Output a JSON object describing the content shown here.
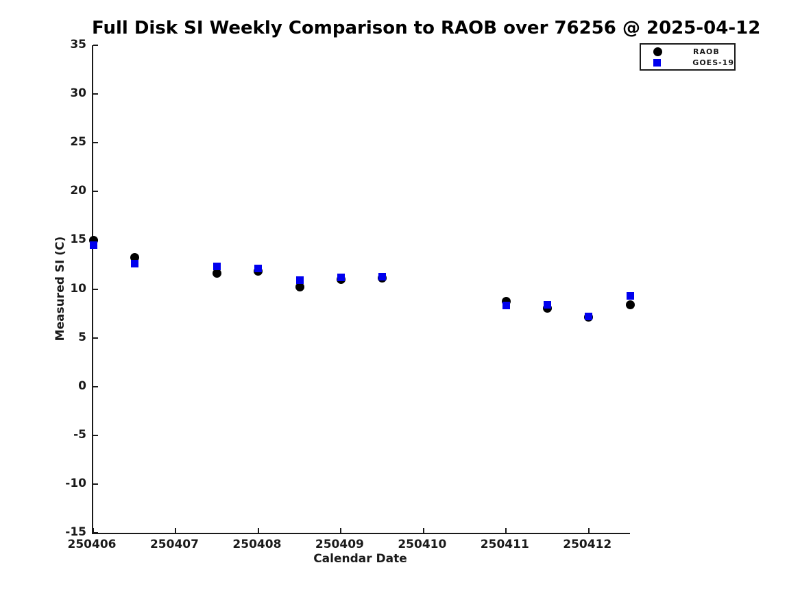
{
  "title": "Full Disk SI Weekly Comparison to RAOB over 76256 @ 2025-04-12",
  "chart_data": {
    "type": "scatter",
    "title": "Full Disk SI Weekly Comparison to RAOB over 76256 @ 2025-04-12",
    "xlabel": "Calendar Date",
    "ylabel": "Measured SI (C)",
    "xlim": [
      250406,
      250412.5
    ],
    "ylim": [
      -15,
      35
    ],
    "x_ticks": [
      250406,
      250407,
      250408,
      250409,
      250410,
      250411,
      250412
    ],
    "y_ticks": [
      35,
      30,
      25,
      20,
      15,
      10,
      5,
      0,
      -5,
      -10,
      -15
    ],
    "grid": false,
    "background": "#ffffff",
    "legend_position": "top-right-outside",
    "series": [
      {
        "name": "RAOB",
        "marker": "circle",
        "color": "#000000",
        "x": [
          250406,
          250406.5,
          250407.5,
          250408,
          250408.5,
          250409,
          250409.5,
          250411,
          250411.5,
          250412,
          250412.5
        ],
        "y": [
          15.0,
          13.2,
          11.6,
          11.8,
          10.2,
          11.0,
          11.1,
          8.7,
          8.0,
          7.1,
          8.4
        ]
      },
      {
        "name": "GOES-19",
        "marker": "square",
        "color": "#0000ee",
        "x": [
          250406,
          250406.5,
          250407.5,
          250408,
          250408.5,
          250409,
          250409.5,
          250411,
          250411.5,
          250412,
          250412.5
        ],
        "y": [
          14.5,
          12.6,
          12.3,
          12.1,
          10.9,
          11.2,
          11.3,
          8.3,
          8.4,
          7.2,
          9.3
        ]
      }
    ]
  }
}
